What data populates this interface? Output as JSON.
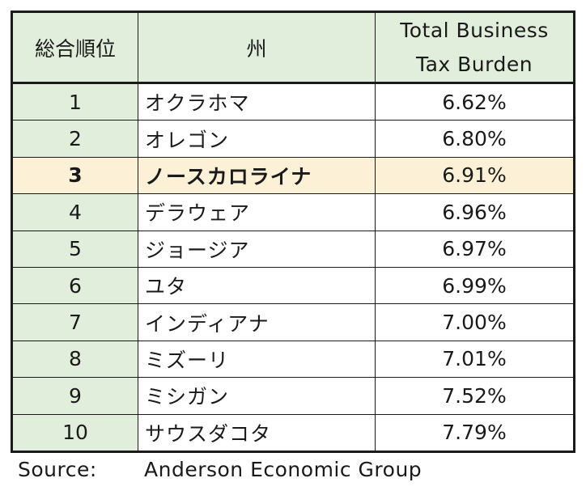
{
  "table": {
    "headers": {
      "rank": "総合順位",
      "state": "州",
      "tax_line1": "Total Business",
      "tax_line2": "Tax Burden"
    },
    "rows": [
      {
        "rank": "1",
        "state": "オクラホマ",
        "tax": "6.62%"
      },
      {
        "rank": "2",
        "state": "オレゴン",
        "tax": "6.80%"
      },
      {
        "rank": "3",
        "state": "ノースカロライナ",
        "tax": "6.91%"
      },
      {
        "rank": "4",
        "state": "デラウェア",
        "tax": "6.96%"
      },
      {
        "rank": "5",
        "state": "ジョージア",
        "tax": "6.97%"
      },
      {
        "rank": "6",
        "state": "ユタ",
        "tax": "6.99%"
      },
      {
        "rank": "7",
        "state": "インディアナ",
        "tax": "7.00%"
      },
      {
        "rank": "8",
        "state": "ミズーリ",
        "tax": "7.01%"
      },
      {
        "rank": "9",
        "state": "ミシガン",
        "tax": "7.52%"
      },
      {
        "rank": "10",
        "state": "サウスダコタ",
        "tax": "7.79%"
      }
    ],
    "highlighted_rank": "3"
  },
  "colors": {
    "header_bg": "#e2eedc",
    "rank_bg": "#e2eedc",
    "highlight_bg": "#fcf1d6",
    "border": "#1a1a1a"
  },
  "source": {
    "label": "Source:",
    "text": "Anderson Economic Group"
  }
}
